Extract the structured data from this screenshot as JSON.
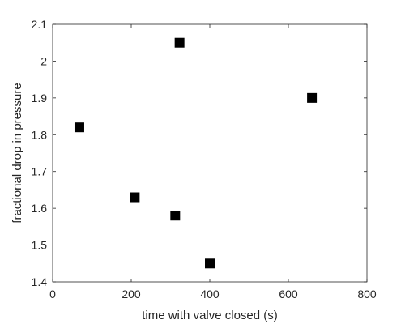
{
  "chart_data": {
    "type": "scatter",
    "xlabel": "time with valve closed (s)",
    "ylabel": "fractional drop in pressure",
    "xlim": [
      0,
      800
    ],
    "ylim": [
      1.4,
      2.1
    ],
    "xticks": [
      0,
      200,
      400,
      600,
      800
    ],
    "yticks": [
      1.4,
      1.5,
      1.6,
      1.7,
      1.8,
      1.9,
      2.0,
      2.1
    ],
    "xtick_labels": [
      "0",
      "200",
      "400",
      "600",
      "800"
    ],
    "ytick_labels": [
      "1.4",
      "1.5",
      "1.6",
      "1.7",
      "1.8",
      "1.9",
      "2",
      "2.1"
    ],
    "grid": false,
    "marker": "square",
    "marker_color": "#000000",
    "points": [
      {
        "x": 68,
        "y": 1.82
      },
      {
        "x": 209,
        "y": 1.63
      },
      {
        "x": 312,
        "y": 1.58
      },
      {
        "x": 323,
        "y": 2.05
      },
      {
        "x": 400,
        "y": 1.45
      },
      {
        "x": 660,
        "y": 1.9
      }
    ]
  }
}
